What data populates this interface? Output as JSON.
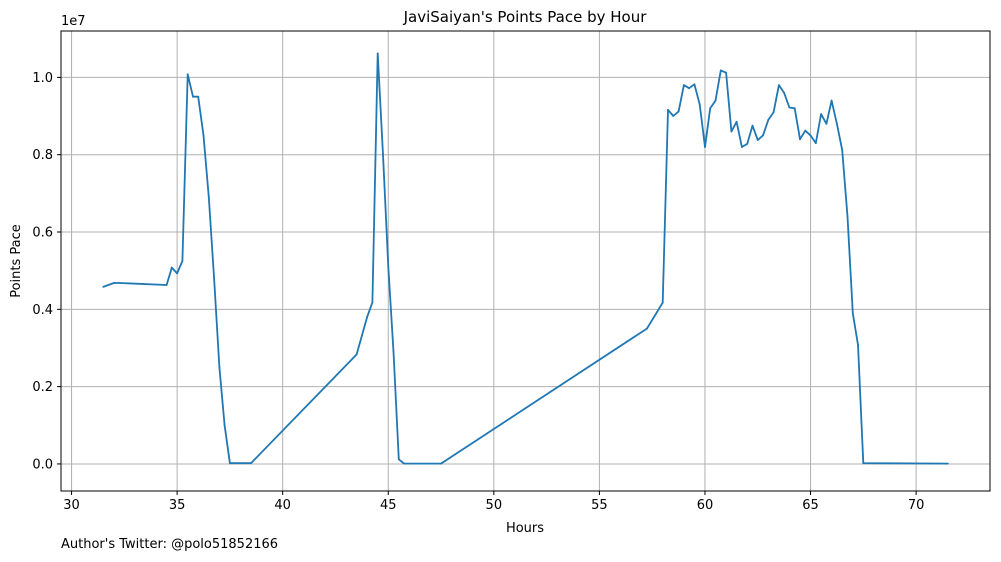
{
  "chart_data": {
    "type": "line",
    "title": "JaviSaiyan's Points Pace by Hour",
    "xlabel": "Hours",
    "ylabel": "Points Pace",
    "y_offset_label": "1e7",
    "xlim": [
      29.5,
      73.5
    ],
    "ylim": [
      -0.07,
      1.12
    ],
    "x_ticks": [
      30,
      35,
      40,
      45,
      50,
      55,
      60,
      65,
      70
    ],
    "y_ticks": [
      0.0,
      0.2,
      0.4,
      0.6,
      0.8,
      1.0
    ],
    "y_tick_labels": [
      "0.0",
      "0.2",
      "0.4",
      "0.6",
      "0.8",
      "1.0"
    ],
    "grid": true,
    "line_color": "#1f77b4",
    "series": [
      {
        "x": [
          31.5,
          32.0,
          32.3,
          34.5,
          34.75,
          35.0,
          35.25,
          35.5,
          35.75,
          36.0,
          36.25,
          36.5,
          36.75,
          37.0,
          37.25,
          37.5,
          38.5,
          43.5,
          44.0,
          44.25,
          44.5,
          44.75,
          45.0,
          45.25,
          45.5,
          45.75,
          47.5,
          57.25,
          58.0,
          58.25,
          58.5,
          58.75,
          59.0,
          59.25,
          59.5,
          59.75,
          60.0,
          60.25,
          60.5,
          60.75,
          61.0,
          61.25,
          61.5,
          61.75,
          62.0,
          62.25,
          62.5,
          62.75,
          63.0,
          63.25,
          63.5,
          63.75,
          64.0,
          64.25,
          64.5,
          64.75,
          65.0,
          65.25,
          65.5,
          65.75,
          66.0,
          66.25,
          66.5,
          66.75,
          67.0,
          67.25,
          67.5,
          71.5
        ],
        "y": [
          0.458,
          0.468,
          0.468,
          0.463,
          0.508,
          0.493,
          0.525,
          1.008,
          0.95,
          0.95,
          0.85,
          0.69,
          0.48,
          0.25,
          0.1,
          0.002,
          0.002,
          0.283,
          0.38,
          0.418,
          1.062,
          0.8,
          0.51,
          0.29,
          0.012,
          0.001,
          0.001,
          0.35,
          0.417,
          0.916,
          0.9,
          0.912,
          0.98,
          0.972,
          0.982,
          0.93,
          0.82,
          0.92,
          0.94,
          1.018,
          1.012,
          0.86,
          0.885,
          0.82,
          0.828,
          0.875,
          0.838,
          0.85,
          0.89,
          0.91,
          0.98,
          0.96,
          0.922,
          0.92,
          0.84,
          0.862,
          0.85,
          0.83,
          0.905,
          0.88,
          0.94,
          0.88,
          0.812,
          0.64,
          0.39,
          0.308,
          0.002,
          0.001
        ]
      }
    ]
  },
  "footer": {
    "text": "Author's Twitter: @polo51852166"
  }
}
